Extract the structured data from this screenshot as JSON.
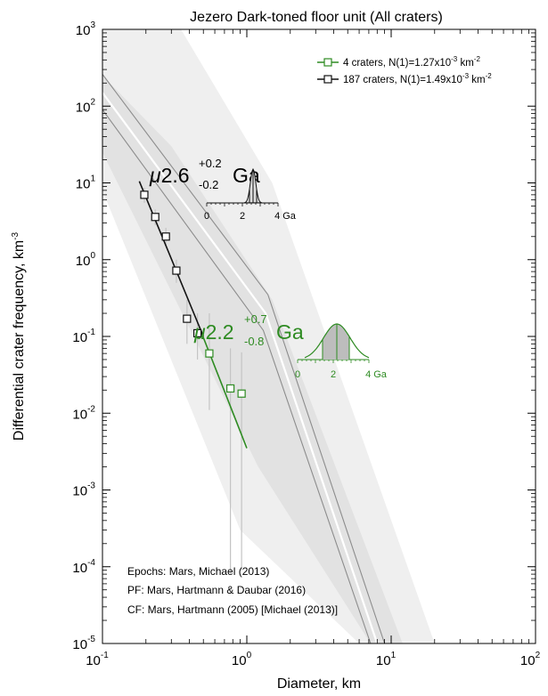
{
  "chart_data": {
    "type": "scatter",
    "title": "Jezero Dark-toned floor unit (All craters)",
    "xlabel": "Diameter, km",
    "ylabel_main": "Differential crater frequency, km",
    "ylabel_sup": "-3",
    "xscale": "log",
    "yscale": "log",
    "xlim": [
      0.1,
      100
    ],
    "ylim": [
      1e-05,
      1000
    ],
    "x_ticks": [
      {
        "base": "10",
        "exp": "-1"
      },
      {
        "base": "10",
        "exp": "0"
      },
      {
        "base": "10",
        "exp": "1"
      },
      {
        "base": "10",
        "exp": "2"
      }
    ],
    "y_ticks": [
      {
        "base": "10",
        "exp": "-5"
      },
      {
        "base": "10",
        "exp": "-4"
      },
      {
        "base": "10",
        "exp": "-3"
      },
      {
        "base": "10",
        "exp": "-2"
      },
      {
        "base": "10",
        "exp": "-1"
      },
      {
        "base": "10",
        "exp": "0"
      },
      {
        "base": "10",
        "exp": "1"
      },
      {
        "base": "10",
        "exp": "2"
      },
      {
        "base": "10",
        "exp": "3"
      }
    ],
    "legend_position": "top-right",
    "series": [
      {
        "name_main": "4 craters, N(1)=1.27x10",
        "name_sup": "-3",
        "name_tail": " km",
        "name_tail_sup": "-2",
        "color": "#2e8b22",
        "points": [
          {
            "x": 0.55,
            "y": 0.06,
            "ylo": 0.011,
            "yhi": 0.2
          },
          {
            "x": 0.77,
            "y": 0.021,
            "ylo": 8e-05,
            "yhi": 0.07
          },
          {
            "x": 0.92,
            "y": 0.018,
            "ylo": 9e-05,
            "yhi": 0.062
          }
        ],
        "fit": [
          [
            0.47,
            0.13
          ],
          [
            1.0,
            0.0035
          ]
        ]
      },
      {
        "name_main": "187 craters, N(1)=1.49x10",
        "name_sup": "-3",
        "name_tail": " km",
        "name_tail_sup": "-2",
        "color": "#111111",
        "points": [
          {
            "x": 0.195,
            "y": 7.0,
            "ylo": 5.5,
            "yhi": 8.6
          },
          {
            "x": 0.232,
            "y": 3.6,
            "ylo": 2.8,
            "yhi": 4.5
          },
          {
            "x": 0.275,
            "y": 2.0,
            "ylo": 1.5,
            "yhi": 2.6
          },
          {
            "x": 0.325,
            "y": 0.72,
            "ylo": 0.5,
            "yhi": 1.0
          },
          {
            "x": 0.385,
            "y": 0.17,
            "ylo": 0.08,
            "yhi": 0.3
          },
          {
            "x": 0.455,
            "y": 0.11,
            "ylo": 0.05,
            "yhi": 0.2
          }
        ],
        "fit": [
          [
            0.18,
            10.5
          ],
          [
            0.5,
            0.1
          ]
        ]
      }
    ],
    "ages": [
      {
        "prefix": "μ",
        "value": "2.6",
        "plus": "+0.2",
        "minus": "-0.2",
        "unit": "Ga",
        "color": "#111111",
        "axis_labels": [
          "0",
          "2",
          "4 Ga"
        ]
      },
      {
        "prefix": "μ",
        "value": "2.2",
        "plus": "+0.7",
        "minus": "-0.8",
        "unit": "Ga",
        "color": "#2e8b22",
        "axis_labels": [
          "0",
          "2",
          "4 Ga"
        ]
      }
    ],
    "notes": [
      "Epochs: Mars, Michael (2013)",
      "PF: Mars, Hartmann & Daubar (2016)",
      "CF: Mars, Hartmann (2005) [Michael (2013)]"
    ]
  }
}
